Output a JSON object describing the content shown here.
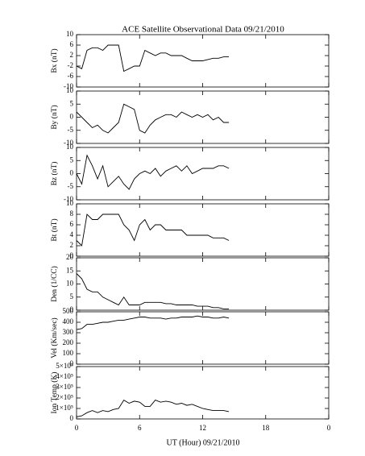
{
  "chart_data": [
    {
      "type": "line",
      "title": "ACE Satellite Observational Data  09/21/2010",
      "ylabel": "Bx (nT)",
      "x": [
        0,
        0.5,
        1,
        1.5,
        2,
        2.5,
        3,
        3.5,
        4,
        4.5,
        5,
        5.5,
        6,
        6.5,
        7,
        7.5,
        8,
        8.5,
        9,
        9.5,
        10,
        10.5,
        11,
        11.5,
        12,
        12.5,
        13,
        13.5,
        14,
        14.5
      ],
      "series": [
        {
          "color": "#000000",
          "values": [
            -2,
            -3,
            4,
            5,
            5,
            4,
            6,
            6,
            6,
            -4,
            -3,
            -2,
            -2,
            4,
            3,
            2,
            3,
            3,
            2,
            2,
            2,
            1,
            0,
            0,
            0,
            0.5,
            1,
            1,
            1.5,
            1.5
          ]
        }
      ],
      "ylim": [
        -10,
        10
      ],
      "yticks": [
        -10,
        -6,
        -2,
        2,
        6,
        10
      ]
    },
    {
      "type": "line",
      "ylabel": "By (nT)",
      "x": [
        0,
        0.5,
        1,
        1.5,
        2,
        2.5,
        3,
        3.5,
        4,
        4.5,
        5,
        5.5,
        6,
        6.5,
        7,
        7.5,
        8,
        8.5,
        9,
        9.5,
        10,
        10.5,
        11,
        11.5,
        12,
        12.5,
        13,
        13.5,
        14,
        14.5
      ],
      "series": [
        {
          "color": "#000000",
          "values": [
            2,
            0,
            -2,
            -4,
            -3,
            -5,
            -6,
            -4,
            -2,
            5,
            4,
            3,
            -5,
            -6,
            -3,
            -1,
            0,
            1,
            1,
            0,
            2,
            1,
            0,
            1,
            0,
            1,
            -1,
            0,
            -2,
            -2
          ]
        }
      ],
      "ylim": [
        -10,
        10
      ],
      "yticks": [
        -10,
        -5,
        0,
        5,
        10
      ]
    },
    {
      "type": "line",
      "ylabel": "Bz (nT)",
      "x": [
        0,
        0.5,
        1,
        1.5,
        2,
        2.5,
        3,
        3.5,
        4,
        4.5,
        5,
        5.5,
        6,
        6.5,
        7,
        7.5,
        8,
        8.5,
        9,
        9.5,
        10,
        10.5,
        11,
        11.5,
        12,
        12.5,
        13,
        13.5,
        14,
        14.5
      ],
      "series": [
        {
          "color": "#000000",
          "values": [
            0,
            -4,
            7,
            3,
            -2,
            3,
            -5,
            -3,
            -1,
            -4,
            -6,
            -2,
            0,
            1,
            0,
            2,
            -1,
            1,
            2,
            3,
            1,
            3,
            0,
            1,
            2,
            2,
            2,
            3,
            3,
            2
          ]
        }
      ],
      "ylim": [
        -10,
        10
      ],
      "yticks": [
        -10,
        -5,
        0,
        5,
        10
      ]
    },
    {
      "type": "line",
      "ylabel": "Bt (nT)",
      "x": [
        0,
        0.5,
        1,
        1.5,
        2,
        2.5,
        3,
        3.5,
        4,
        4.5,
        5,
        5.5,
        6,
        6.5,
        7,
        7.5,
        8,
        8.5,
        9,
        9.5,
        10,
        10.5,
        11,
        11.5,
        12,
        12.5,
        13,
        13.5,
        14,
        14.5
      ],
      "series": [
        {
          "color": "#000000",
          "values": [
            3,
            2,
            8,
            7,
            7,
            8,
            8,
            8,
            8,
            6,
            5,
            3,
            6,
            7,
            5,
            6,
            6,
            5,
            5,
            5,
            5,
            4,
            4,
            4,
            4,
            4,
            3.5,
            3.5,
            3.5,
            3
          ]
        }
      ],
      "ylim": [
        0,
        10
      ],
      "yticks": [
        0,
        2,
        4,
        6,
        8,
        10
      ]
    },
    {
      "type": "line",
      "ylabel": "Den (1/CC)",
      "x": [
        0,
        0.5,
        1,
        1.5,
        2,
        2.5,
        3,
        3.5,
        4,
        4.5,
        5,
        5.5,
        6,
        6.5,
        7,
        7.5,
        8,
        8.5,
        9,
        9.5,
        10,
        10.5,
        11,
        11.5,
        12,
        12.5,
        13,
        13.5,
        14,
        14.5
      ],
      "series": [
        {
          "color": "#000000",
          "values": [
            14,
            12,
            8,
            7,
            7,
            5,
            4,
            3,
            2,
            5,
            2,
            2,
            2,
            3,
            3,
            3,
            3,
            2.5,
            2.5,
            2,
            2,
            2,
            2,
            1.5,
            1.5,
            1.5,
            1,
            1,
            0.5,
            0.5
          ]
        }
      ],
      "ylim": [
        0,
        20
      ],
      "yticks": [
        0,
        5,
        10,
        15,
        20
      ]
    },
    {
      "type": "line",
      "ylabel": "Vel (Km/sec)",
      "x": [
        0,
        0.5,
        1,
        1.5,
        2,
        2.5,
        3,
        3.5,
        4,
        4.5,
        5,
        5.5,
        6,
        6.5,
        7,
        7.5,
        8,
        8.5,
        9,
        9.5,
        10,
        10.5,
        11,
        11.5,
        12,
        12.5,
        13,
        13.5,
        14,
        14.5
      ],
      "series": [
        {
          "color": "#000000",
          "values": [
            330,
            340,
            380,
            380,
            390,
            400,
            400,
            410,
            420,
            420,
            430,
            440,
            450,
            450,
            440,
            440,
            440,
            430,
            440,
            440,
            450,
            450,
            450,
            460,
            450,
            450,
            440,
            440,
            450,
            440
          ]
        }
      ],
      "ylim": [
        0,
        500
      ],
      "yticks": [
        0,
        100,
        200,
        300,
        400,
        500
      ]
    },
    {
      "type": "line",
      "ylabel": "Ion Temp (K)",
      "xlabel": "UT (Hour)  09/21/2010",
      "x": [
        0,
        0.5,
        1,
        1.5,
        2,
        2.5,
        3,
        3.5,
        4,
        4.5,
        5,
        5.5,
        6,
        6.5,
        7,
        7.5,
        8,
        8.5,
        9,
        9.5,
        10,
        10.5,
        11,
        11.5,
        12,
        12.5,
        13,
        13.5,
        14,
        14.5
      ],
      "series": [
        {
          "color": "#000000",
          "values": [
            20000,
            30000,
            60000,
            80000,
            60000,
            80000,
            70000,
            90000,
            100000,
            180000,
            150000,
            170000,
            160000,
            120000,
            120000,
            180000,
            160000,
            170000,
            160000,
            140000,
            150000,
            130000,
            140000,
            120000,
            100000,
            90000,
            80000,
            80000,
            80000,
            70000
          ]
        }
      ],
      "ylim": [
        0,
        500000
      ],
      "yticks": [
        0,
        {
          "value": 100000,
          "label": "1×10⁵"
        },
        {
          "value": 200000,
          "label": "2×10⁵"
        },
        {
          "value": 300000,
          "label": "3×10⁵"
        },
        {
          "value": 400000,
          "label": "4×10⁵"
        },
        {
          "value": 500000,
          "label": "5×10⁵"
        }
      ],
      "xlim": [
        0,
        24
      ],
      "xticks": [
        0,
        6,
        12,
        18,
        {
          "value": 24,
          "label": "0"
        }
      ]
    }
  ]
}
